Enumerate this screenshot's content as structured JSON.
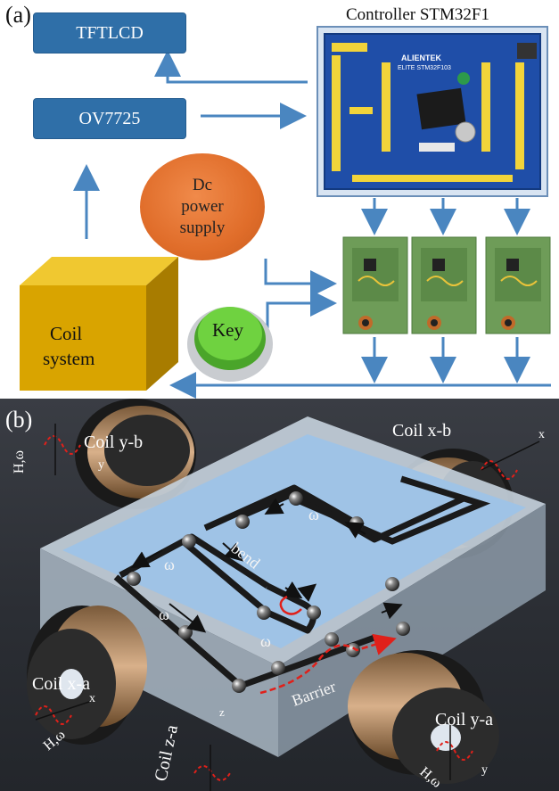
{
  "panel_a": {
    "label": "(a)",
    "tftlcd": "TFTLCD",
    "ov7725": "OV7725",
    "controller_title": "Controller STM32F1",
    "dc_power": [
      "Dc",
      "power",
      "supply"
    ],
    "key": "Key",
    "coil_system": [
      "Coil",
      "system"
    ],
    "board_brand": "ALIENTEK",
    "board_model": "ELITE STM32F103",
    "colors": {
      "box": "#2f6fa8",
      "arrow": "#4a86c0",
      "ellipse": "#e06d2a",
      "coil_cube": "#d9a400",
      "key": "#5ec032"
    }
  },
  "panel_b": {
    "label": "(b)",
    "coil_yb": "Coil y-b",
    "coil_xb": "Coil x-b",
    "coil_xa": "Coil x-a",
    "coil_ya": "Coil y-a",
    "coil_za": "Coil z-a",
    "bend": "bend",
    "barrier": "Barrier",
    "omega": "ω",
    "H_omega": "H,ω",
    "axis_x": "x",
    "axis_y": "y",
    "axis_z": "z",
    "colors": {
      "background": "#2b2e34",
      "plate": "#9fc3e6",
      "channel": "#1a1a1a",
      "path": "#e0201a"
    }
  }
}
